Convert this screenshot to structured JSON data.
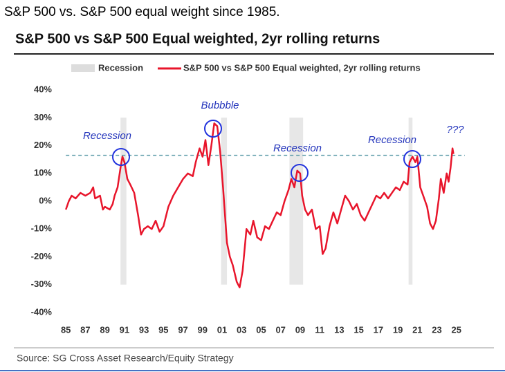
{
  "caption": "S&P 500 vs. S&P 500 equal weight since 1985.",
  "source": "Source: SG Cross Asset Research/Equity Strategy",
  "chart_data": {
    "type": "line",
    "title": "S&P 500 vs S&P 500 Equal weighted, 2yr rolling returns",
    "recession_label": "Recession",
    "recession_color": "#dddddd",
    "recessions": [
      [
        1990.6,
        1991.2
      ],
      [
        2000.9,
        2001.5
      ],
      [
        2007.9,
        2009.3
      ],
      [
        2020.1,
        2020.5
      ]
    ],
    "reference_value": 16.5,
    "reference_color": "#5b9aa8",
    "annotations": [
      "Recession",
      "Bubbble",
      "Recession",
      "Recession",
      "???"
    ],
    "x": [
      1985.0,
      1985.3,
      1985.6,
      1986.0,
      1986.5,
      1987.0,
      1987.5,
      1987.8,
      1988.0,
      1988.5,
      1988.8,
      1989.0,
      1989.5,
      1989.8,
      1990.0,
      1990.3,
      1990.6,
      1990.8,
      1991.0,
      1991.3,
      1991.6,
      1992.0,
      1992.4,
      1992.7,
      1993.0,
      1993.4,
      1993.8,
      1994.2,
      1994.6,
      1995.0,
      1995.5,
      1996.0,
      1996.5,
      1997.0,
      1997.5,
      1998.0,
      1998.3,
      1998.7,
      1999.0,
      1999.3,
      1999.6,
      1999.9,
      2000.2,
      2000.5,
      2000.8,
      2001.1,
      2001.5,
      2001.8,
      2002.1,
      2002.5,
      2002.8,
      2003.1,
      2003.5,
      2003.9,
      2004.2,
      2004.6,
      2005.0,
      2005.4,
      2005.8,
      2006.2,
      2006.6,
      2007.0,
      2007.4,
      2007.8,
      2008.1,
      2008.4,
      2008.7,
      2009.0,
      2009.2,
      2009.5,
      2009.8,
      2010.2,
      2010.6,
      2011.0,
      2011.3,
      2011.6,
      2012.0,
      2012.4,
      2012.8,
      2013.2,
      2013.6,
      2014.0,
      2014.4,
      2014.8,
      2015.2,
      2015.6,
      2016.0,
      2016.4,
      2016.8,
      2017.2,
      2017.6,
      2018.0,
      2018.4,
      2018.8,
      2019.2,
      2019.6,
      2020.0,
      2020.2,
      2020.5,
      2020.8,
      2021.0,
      2021.3,
      2021.6,
      2022.0,
      2022.3,
      2022.6,
      2022.9,
      2023.2,
      2023.4,
      2023.7,
      2024.0,
      2024.2,
      2024.4,
      2024.6,
      2024.7
    ],
    "series": [
      {
        "name": "S&P 500 vs S&P 500 Equal weighted, 2yr rolling returns",
        "color": "#e8152b",
        "values": [
          -3,
          0,
          2,
          1,
          3,
          2,
          3,
          5,
          1,
          2,
          -3,
          -2,
          -3,
          -1,
          2,
          5,
          12,
          16,
          14,
          8,
          6,
          3,
          -5,
          -12,
          -10,
          -9,
          -10,
          -7,
          -11,
          -9,
          -2,
          2,
          5,
          8,
          10,
          9,
          14,
          19,
          16,
          22,
          13,
          20,
          28,
          27,
          18,
          5,
          -15,
          -20,
          -23,
          -29,
          -31,
          -25,
          -10,
          -12,
          -7,
          -13,
          -14,
          -9,
          -10,
          -7,
          -4,
          -5,
          0,
          4,
          8,
          5,
          11,
          10,
          2,
          -3,
          -5,
          -3,
          -10,
          -9,
          -19,
          -17,
          -9,
          -4,
          -8,
          -3,
          2,
          0,
          -3,
          -1,
          -5,
          -7,
          -4,
          -1,
          2,
          1,
          3,
          1,
          3,
          5,
          4,
          7,
          6,
          14,
          16,
          14,
          16,
          5,
          2,
          -2,
          -8,
          -10,
          -7,
          1,
          8,
          3,
          10,
          7,
          12,
          19,
          17
        ]
      }
    ],
    "xlim": [
      1983.5,
      2027
    ],
    "ylim": [
      -45,
      45
    ],
    "xticks": [
      {
        "value": 1985,
        "label": "85"
      },
      {
        "value": 1987,
        "label": "87"
      },
      {
        "value": 1989,
        "label": "89"
      },
      {
        "value": 1991,
        "label": "91"
      },
      {
        "value": 1993,
        "label": "93"
      },
      {
        "value": 1995,
        "label": "95"
      },
      {
        "value": 1997,
        "label": "97"
      },
      {
        "value": 1999,
        "label": "99"
      },
      {
        "value": 2001,
        "label": "01"
      },
      {
        "value": 2003,
        "label": "03"
      },
      {
        "value": 2005,
        "label": "05"
      },
      {
        "value": 2007,
        "label": "07"
      },
      {
        "value": 2009,
        "label": "09"
      },
      {
        "value": 2011,
        "label": "11"
      },
      {
        "value": 2013,
        "label": "13"
      },
      {
        "value": 2015,
        "label": "15"
      },
      {
        "value": 2017,
        "label": "17"
      },
      {
        "value": 2019,
        "label": "19"
      },
      {
        "value": 2021,
        "label": "21"
      },
      {
        "value": 2023,
        "label": "23"
      },
      {
        "value": 2025,
        "label": "25"
      }
    ],
    "yticks": [
      {
        "value": 40,
        "label": "40%"
      },
      {
        "value": 30,
        "label": "30%"
      },
      {
        "value": 20,
        "label": "20%"
      },
      {
        "value": 10,
        "label": "10%"
      },
      {
        "value": 0,
        "label": "0%"
      },
      {
        "value": -10,
        "label": "-10%"
      },
      {
        "value": -20,
        "label": "-20%"
      },
      {
        "value": -30,
        "label": "-30%"
      },
      {
        "value": -40,
        "label": "-40%"
      }
    ]
  }
}
